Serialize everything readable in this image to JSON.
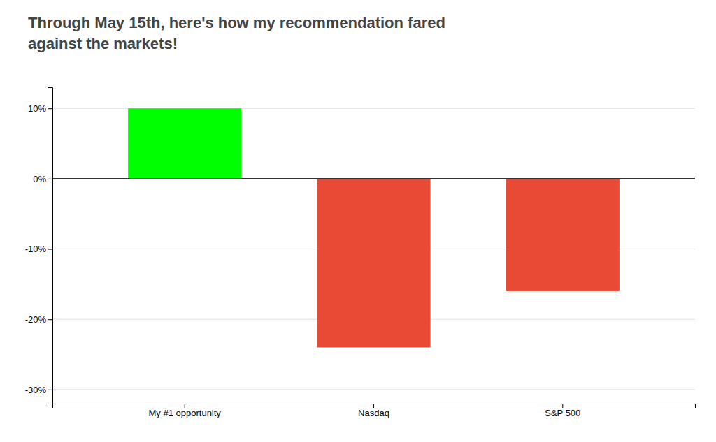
{
  "chart_data": {
    "type": "bar",
    "title": "Through May 15th, here's how my recommendation fared\nagainst the markets!",
    "categories": [
      "My #1 opportunity",
      "Nasdaq",
      "S&P 500"
    ],
    "values": [
      10,
      -24,
      -16
    ],
    "colors": [
      "#00ff00",
      "#e84a35",
      "#e84a35"
    ],
    "ylim": [
      -32,
      13
    ],
    "yticks": [
      {
        "value": -30,
        "label": "-30%"
      },
      {
        "value": -20,
        "label": "-20%"
      },
      {
        "value": -10,
        "label": "-10%"
      },
      {
        "value": 0,
        "label": "0%"
      },
      {
        "value": 10,
        "label": "10%"
      }
    ],
    "grid": true
  }
}
